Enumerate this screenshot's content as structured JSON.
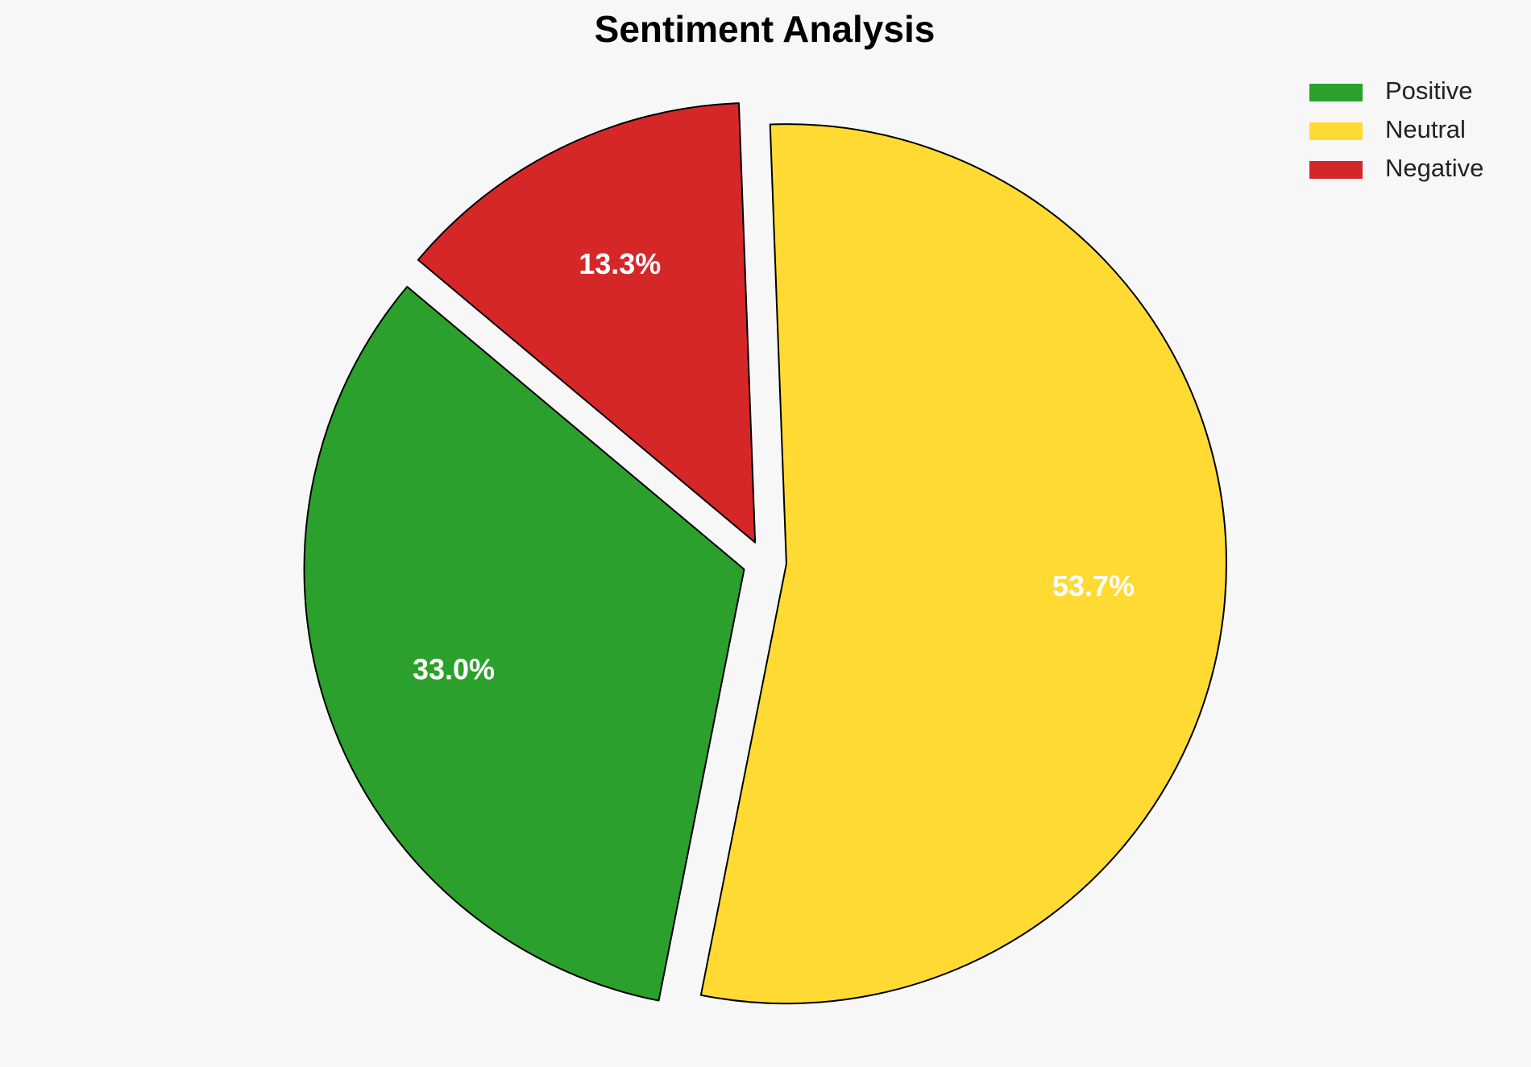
{
  "chart_data": {
    "type": "pie",
    "title": "Sentiment Analysis",
    "categories": [
      "Positive",
      "Neutral",
      "Negative"
    ],
    "values": [
      33.0,
      53.7,
      13.3
    ],
    "value_labels": [
      "33.0%",
      "53.7%",
      "13.3%"
    ],
    "colors": [
      "#2ca02c",
      "#ffda33",
      "#d62728"
    ],
    "legend": "upper right"
  }
}
